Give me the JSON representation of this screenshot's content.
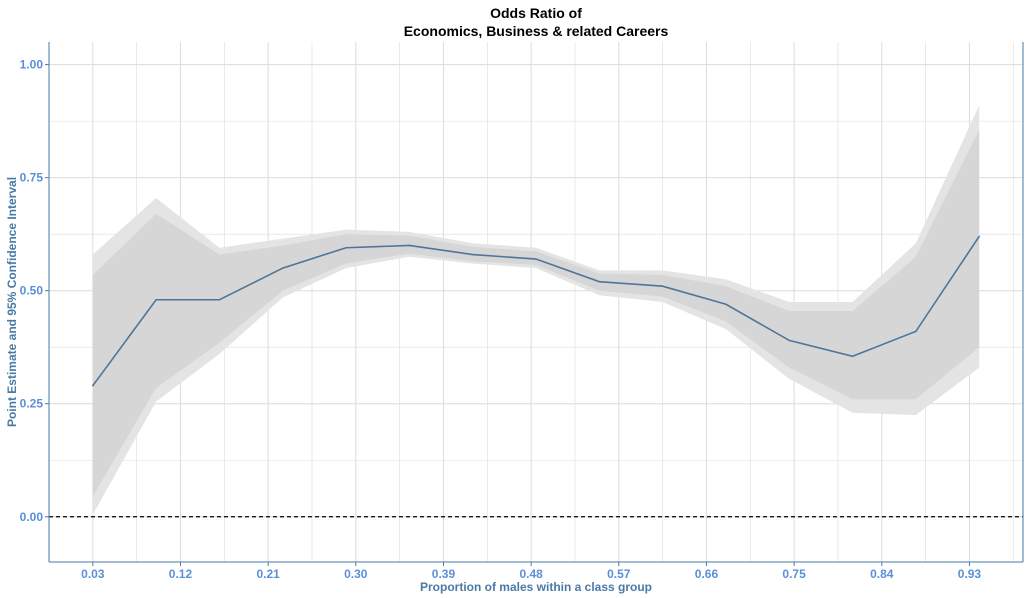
{
  "chart_data": {
    "type": "line",
    "title": {
      "line1": "Odds Ratio of",
      "line2": "Economics, Business & related Careers"
    },
    "xlabel": "Proportion of males within a class group",
    "ylabel": "Point Estimate and 95% Confidence Interval",
    "xlim": [
      -0.015,
      0.985
    ],
    "ylim": [
      -0.1,
      1.05
    ],
    "x_ticks": [
      0.03,
      0.12,
      0.21,
      0.3,
      0.39,
      0.48,
      0.57,
      0.66,
      0.75,
      0.84,
      0.93
    ],
    "x_tick_labels": [
      "0.03",
      "0.12",
      "0.21",
      "0.30",
      "0.39",
      "0.48",
      "0.57",
      "0.66",
      "0.75",
      "0.84",
      "0.93"
    ],
    "y_ticks": [
      0.0,
      0.25,
      0.5,
      0.75,
      1.0
    ],
    "y_tick_labels": [
      "0.00",
      "0.25",
      "0.50",
      "0.75",
      "1.00"
    ],
    "grid": true,
    "reference_line": {
      "y": 0.0,
      "style": "dashed"
    },
    "series": [
      {
        "x": [
          0.03,
          0.095,
          0.16,
          0.225,
          0.29,
          0.355,
          0.42,
          0.485,
          0.55,
          0.615,
          0.68,
          0.745,
          0.81,
          0.875,
          0.94
        ],
        "values": [
          0.29,
          0.48,
          0.48,
          0.55,
          0.595,
          0.6,
          0.58,
          0.57,
          0.52,
          0.51,
          0.47,
          0.39,
          0.355,
          0.41,
          0.62
        ],
        "ci_outer_lower": [
          0.005,
          0.255,
          0.36,
          0.485,
          0.55,
          0.575,
          0.56,
          0.55,
          0.49,
          0.475,
          0.415,
          0.305,
          0.23,
          0.225,
          0.33
        ],
        "ci_outer_upper": [
          0.58,
          0.705,
          0.595,
          0.615,
          0.635,
          0.63,
          0.605,
          0.595,
          0.545,
          0.545,
          0.525,
          0.475,
          0.475,
          0.605,
          0.91
        ],
        "ci_inner_lower": [
          0.045,
          0.285,
          0.385,
          0.5,
          0.56,
          0.582,
          0.565,
          0.557,
          0.5,
          0.487,
          0.432,
          0.33,
          0.26,
          0.26,
          0.375
        ],
        "ci_inner_upper": [
          0.535,
          0.67,
          0.58,
          0.6,
          0.625,
          0.622,
          0.597,
          0.587,
          0.538,
          0.535,
          0.51,
          0.455,
          0.455,
          0.575,
          0.855
        ]
      }
    ],
    "colors": {
      "line": "#4e7599",
      "ci_outer": "#e4e4e4",
      "ci_inner": "#d6d6d6",
      "grid": "#dcdcdc",
      "axis": "#4a7aa6",
      "tick_label": "#5b8fd9",
      "axis_title": "#4a7aa6",
      "reference": "#000000"
    }
  }
}
